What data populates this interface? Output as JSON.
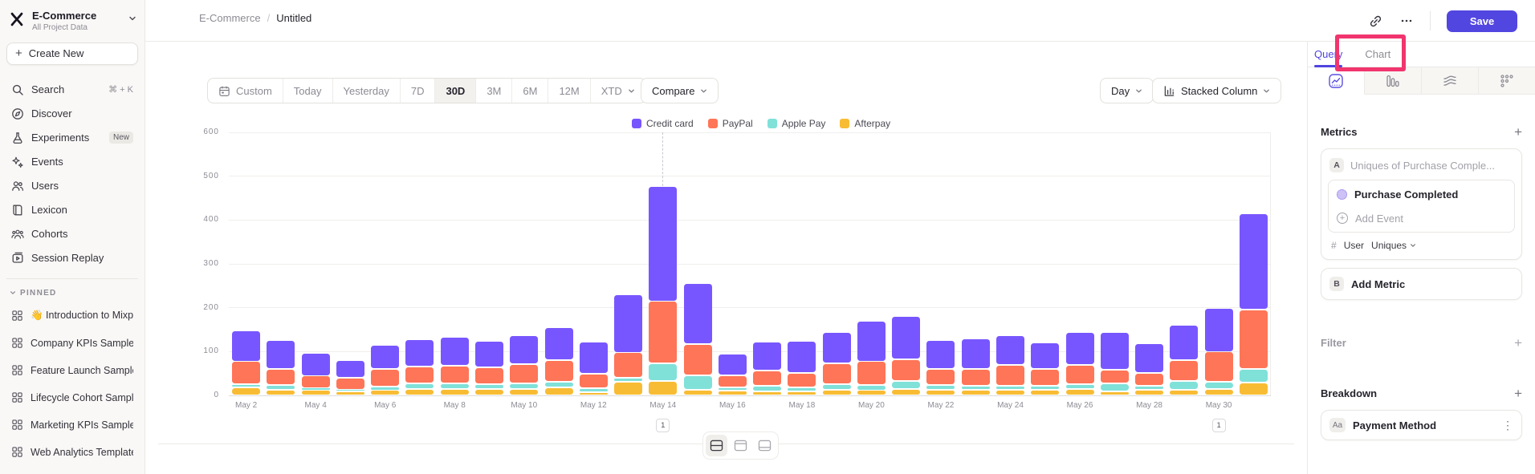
{
  "sidebar": {
    "project_name": "E-Commerce",
    "project_subtitle": "All Project Data",
    "create_new_label": "Create New",
    "nav": [
      {
        "label": "Search",
        "icon": "search-icon",
        "shortcut": "⌘ + K"
      },
      {
        "label": "Discover",
        "icon": "discover-icon"
      },
      {
        "label": "Experiments",
        "icon": "experiments-icon",
        "badge": "New"
      },
      {
        "label": "Events",
        "icon": "events-icon"
      },
      {
        "label": "Users",
        "icon": "users-icon"
      },
      {
        "label": "Lexicon",
        "icon": "lexicon-icon"
      },
      {
        "label": "Cohorts",
        "icon": "cohorts-icon"
      },
      {
        "label": "Session Replay",
        "icon": "session-replay-icon"
      }
    ],
    "pinned_header": "PINNED",
    "pinned_items": [
      "👋 Introduction to Mixpanel Bo",
      "Company KPIs Sample Templat",
      "Feature Launch Sample Templa",
      "Lifecycle Cohort Sample Temp",
      "Marketing KPIs Sample Templat",
      "Web Analytics Template"
    ]
  },
  "header": {
    "breadcrumb_root": "E-Commerce",
    "breadcrumb_separator": "/",
    "breadcrumb_current": "Untitled",
    "save_label": "Save"
  },
  "toolbar": {
    "date_ranges": [
      "Custom",
      "Today",
      "Yesterday",
      "7D",
      "30D",
      "3M",
      "6M",
      "12M",
      "XTD"
    ],
    "active_range": "30D",
    "compare_label": "Compare",
    "granularity_label": "Day",
    "chart_type_label": "Stacked Column"
  },
  "right_panel": {
    "tabs": [
      {
        "label": "Query",
        "active": true
      },
      {
        "label": "Chart",
        "active": false
      }
    ],
    "highlight_box_color": "#F1356E",
    "metrics_title": "Metrics",
    "metric_letter": "A",
    "metric_placeholder": "Uniques of Purchase Comple...",
    "event_name": "Purchase Completed",
    "add_event_label": "Add Event",
    "aggregation_prefix": "#",
    "aggregation_entity": "User",
    "aggregation_type": "Uniques",
    "add_metric_letter": "B",
    "add_metric_label": "Add Metric",
    "filter_title": "Filter",
    "breakdown_title": "Breakdown",
    "breakdown_property_badge": "Aa",
    "breakdown_property": "Payment Method"
  },
  "chart_data": {
    "type": "bar",
    "stacked": true,
    "title": "",
    "x": [
      "May 2",
      "May 3",
      "May 4",
      "May 5",
      "May 6",
      "May 7",
      "May 8",
      "May 9",
      "May 10",
      "May 11",
      "May 12",
      "May 13",
      "May 14",
      "May 15",
      "May 16",
      "May 17",
      "May 18",
      "May 19",
      "May 20",
      "May 21",
      "May 22",
      "May 23",
      "May 24",
      "May 25",
      "May 26",
      "May 27",
      "May 28",
      "May 29",
      "May 30",
      "May 31"
    ],
    "x_tick_labels": [
      "May 2",
      "May 4",
      "May 6",
      "May 8",
      "May 10",
      "May 12",
      "May 14",
      "May 16",
      "May 18",
      "May 20",
      "May 22",
      "May 24",
      "May 26",
      "May 28",
      "May 30"
    ],
    "series": [
      {
        "name": "Credit card",
        "color": "#7856FF",
        "values": [
          70,
          65,
          52,
          40,
          55,
          62,
          65,
          60,
          66,
          75,
          72,
          133,
          263,
          139,
          50,
          65,
          72,
          70,
          92,
          98,
          65,
          69,
          68,
          59,
          75,
          85,
          67,
          81,
          100,
          219
        ]
      },
      {
        "name": "PayPal",
        "color": "#FF7557",
        "values": [
          52,
          37,
          28,
          28,
          40,
          38,
          40,
          38,
          43,
          50,
          33,
          57,
          142,
          72,
          27,
          35,
          33,
          48,
          54,
          50,
          37,
          39,
          47,
          39,
          43,
          31,
          30,
          47,
          69,
          135
        ]
      },
      {
        "name": "Apple Pay",
        "color": "#80E1D9",
        "values": [
          8,
          11,
          5,
          4,
          8,
          13,
          13,
          11,
          13,
          13,
          9,
          9,
          40,
          33,
          8,
          13,
          9,
          13,
          12,
          18,
          11,
          9,
          9,
          9,
          11,
          19,
          9,
          20,
          16,
          31
        ]
      },
      {
        "name": "Afterpay",
        "color": "#F8BC34",
        "values": [
          18,
          13,
          12,
          9,
          12,
          15,
          15,
          15,
          15,
          18,
          8,
          32,
          33,
          13,
          11,
          9,
          10,
          13,
          12,
          15,
          13,
          13,
          13,
          13,
          15,
          9,
          13,
          13,
          15,
          30
        ]
      }
    ],
    "stack_order_bottom_to_top": [
      "Afterpay",
      "Apple Pay",
      "PayPal",
      "Credit card"
    ],
    "ylim": [
      0,
      600
    ],
    "yticks": [
      0,
      100,
      200,
      300,
      400,
      500,
      600
    ],
    "grid": true,
    "legend_position": "top",
    "annotations": [
      {
        "x": "May 14",
        "label": "1",
        "dashed_line": true
      },
      {
        "x": "May 30",
        "label": "1",
        "dashed_line": false
      }
    ]
  }
}
